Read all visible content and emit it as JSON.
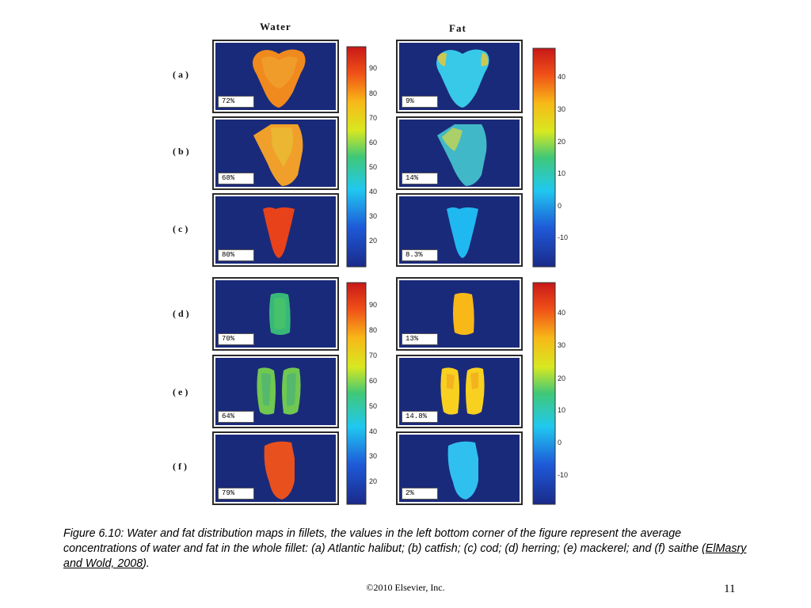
{
  "titles": {
    "water": "Water",
    "fat": "Fat"
  },
  "rows": [
    {
      "label": "(a)",
      "water_pct": "72%",
      "fat_pct": "9%"
    },
    {
      "label": "(b)",
      "water_pct": "68%",
      "fat_pct": "14%"
    },
    {
      "label": "(c)",
      "water_pct": "80%",
      "fat_pct": "8.3%"
    },
    {
      "label": "(d)",
      "water_pct": "70%",
      "fat_pct": "13%"
    },
    {
      "label": "(e)",
      "water_pct": "64%",
      "fat_pct": "14.8%"
    },
    {
      "label": "(f)",
      "water_pct": "79%",
      "fat_pct": "2%"
    }
  ],
  "water_ticks": [
    "90",
    "80",
    "70",
    "60",
    "50",
    "40",
    "30",
    "20"
  ],
  "fat_ticks": [
    "40",
    "30",
    "20",
    "10",
    "0",
    "-10"
  ],
  "caption": {
    "text": "Figure 6.10: Water and fat distribution maps in fillets, the values in the left bottom corner of the figure represent the average concentrations of water and fat in the whole fillet: (a) Atlantic halibut; (b) catfish; (c) cod; (d) herring; (e) mackerel; and (f) saithe (",
    "ref": "ElMasry and Wold, 2008",
    "end": ")."
  },
  "footer": {
    "copyright": "©2010 Elsevier, Inc.",
    "page": "11"
  },
  "colors": {
    "background_map": "#1a2a7a",
    "water_a": "#f08a1e",
    "water_b": "#f0a02a",
    "water_c": "#e8421a",
    "water_d": "#38b878",
    "water_e": "#70c850",
    "water_f": "#e8501e",
    "fat_a": "#38c8e8",
    "fat_b": "#40b8c8",
    "fat_c": "#20b8f0",
    "fat_d": "#f8b818",
    "fat_e": "#f8d020",
    "fat_f": "#30c0f0"
  }
}
